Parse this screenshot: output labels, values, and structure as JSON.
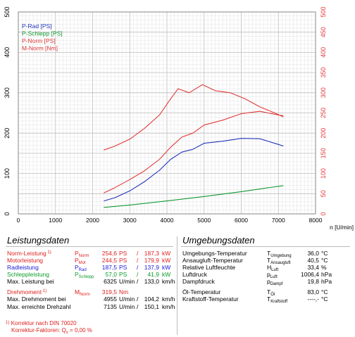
{
  "colors": {
    "red": "#e23a3a",
    "blue": "#2233bb",
    "green": "#119933",
    "grid": "#d6d6d6"
  },
  "chart_data": {
    "type": "line",
    "xlabel": "n [U/min]",
    "xlim": [
      0,
      8000
    ],
    "xticks": [
      "0",
      "1000",
      "2000",
      "3000",
      "4000",
      "5000",
      "6000",
      "7000",
      "8000"
    ],
    "ylim": [
      0,
      500
    ],
    "yticks_left": [
      "0",
      "100",
      "200",
      "300",
      "400",
      "500"
    ],
    "yticks_right": [
      "0",
      "50",
      "100",
      "150",
      "200",
      "250",
      "300",
      "350",
      "400",
      "450",
      "500"
    ],
    "legend": [
      "P-Rad [PS]",
      "P-Schlepp [PS]",
      "P-Norm [PS]",
      "M-Norm [Nm]"
    ],
    "series": [
      {
        "name": "P-Rad [PS]",
        "color": "#2233bb",
        "axis": "left",
        "x": [
          2300,
          2600,
          3000,
          3400,
          3800,
          4100,
          4400,
          4700,
          5000,
          5500,
          6000,
          6500,
          7000,
          7135
        ],
        "y": [
          32,
          40,
          57,
          80,
          108,
          135,
          153,
          160,
          175,
          180,
          187,
          186,
          172,
          168
        ]
      },
      {
        "name": "P-Schlepp [PS]",
        "color": "#119933",
        "axis": "left",
        "x": [
          2300,
          3000,
          4000,
          5000,
          6000,
          7135
        ],
        "y": [
          16,
          22,
          32,
          43,
          55,
          70
        ]
      },
      {
        "name": "P-Norm [PS]",
        "color": "#e23a3a",
        "axis": "left",
        "x": [
          2300,
          2600,
          3000,
          3400,
          3800,
          4100,
          4400,
          4700,
          5000,
          5500,
          6000,
          6500,
          7000,
          7135
        ],
        "y": [
          52,
          65,
          85,
          107,
          135,
          165,
          190,
          200,
          220,
          232,
          248,
          254,
          245,
          243
        ]
      },
      {
        "name": "M-Norm [Nm]",
        "color": "#e23a3a",
        "axis": "right",
        "x": [
          2300,
          2600,
          3000,
          3400,
          3800,
          4100,
          4300,
          4600,
          4955,
          5300,
          5700,
          6100,
          6500,
          6900,
          7135
        ],
        "y": [
          158,
          168,
          185,
          212,
          245,
          285,
          310,
          300,
          320,
          305,
          300,
          285,
          265,
          250,
          240
        ]
      }
    ]
  },
  "left_panel": {
    "title": "Leistungsdaten",
    "rows": [
      {
        "label": "Norm-Leistung",
        "sup": "1)",
        "sym": "P",
        "sub": "Norm",
        "v1": "254,6",
        "u1": "PS",
        "sep": "/",
        "v2": "187,3",
        "u2": "kW",
        "color": "red"
      },
      {
        "label": "Motorleistung",
        "sup": "",
        "sym": "P",
        "sub": "Mot",
        "v1": "244,5",
        "u1": "PS",
        "sep": "/",
        "v2": "179,9",
        "u2": "kW",
        "color": "red"
      },
      {
        "label": "Radleistung",
        "sup": "",
        "sym": "P",
        "sub": "Rad",
        "v1": "187,5",
        "u1": "PS",
        "sep": "/",
        "v2": "137,9",
        "u2": "kW",
        "color": "blue"
      },
      {
        "label": "Schleppleistung",
        "sup": "",
        "sym": "P",
        "sub": "Schlepp",
        "v1": "57,0",
        "u1": "PS",
        "sep": "/",
        "v2": "41,9",
        "u2": "kW",
        "color": "green"
      },
      {
        "label": "Max. Leistung bei",
        "sup": "",
        "sym": "",
        "sub": "",
        "v1": "6325",
        "u1": "U/min",
        "sep": "/",
        "v2": "133,0",
        "u2": "km/h",
        "color": "black"
      },
      {
        "label": "Drehmoment",
        "sup": "1)",
        "sym": "M",
        "sub": "Norm",
        "v1": "319,5",
        "u1": "Nm",
        "sep": "",
        "v2": "",
        "u2": "",
        "color": "red"
      },
      {
        "label": "Max. Drehmoment bei",
        "sup": "",
        "sym": "",
        "sub": "",
        "v1": "4955",
        "u1": "U/min",
        "sep": "/",
        "v2": "104,2",
        "u2": "km/h",
        "color": "black"
      },
      {
        "label": "Max. erreichte Drehzahl",
        "sup": "",
        "sym": "",
        "sub": "",
        "v1": "7135",
        "u1": "U/min",
        "sep": "/",
        "v2": "150,1",
        "u2": "km/h",
        "color": "black"
      }
    ],
    "footnote1": "Korrektur nach DIN 70020",
    "footnote1_mark": "1)",
    "footnote2": "Korrektur-Faktoren: Q",
    "footnote2_sub": "v",
    "footnote2_value": "=   0,00 %"
  },
  "right_panel": {
    "title": "Umgebungsdaten",
    "rows": [
      {
        "label": "Umgebungs-Temperatur",
        "sym": "T",
        "sub": "Umgebung",
        "value": "36,0",
        "unit": "°C"
      },
      {
        "label": "Ansaugluft-Temperatur",
        "sym": "T",
        "sub": "Ansaugluft",
        "value": "40,5",
        "unit": "°C"
      },
      {
        "label": "Relative Luftfeuchte",
        "sym": "H",
        "sub": "Luft",
        "value": "33,4",
        "unit": "%"
      },
      {
        "label": "Luftdruck",
        "sym": "p",
        "sub": "Luft",
        "value": "1006,4",
        "unit": "hPa"
      },
      {
        "label": "Dampfdruck",
        "sym": "p",
        "sub": "Dampf",
        "value": "19,8",
        "unit": "hPa"
      },
      {
        "label": "Öl-Temperatur",
        "sym": "T",
        "sub": "Öl",
        "value": "83,0",
        "unit": "°C"
      },
      {
        "label": "Kraftstoff-Temperatur",
        "sym": "T",
        "sub": "Kraftstoff",
        "value": "----,-",
        "unit": "°C"
      }
    ]
  }
}
